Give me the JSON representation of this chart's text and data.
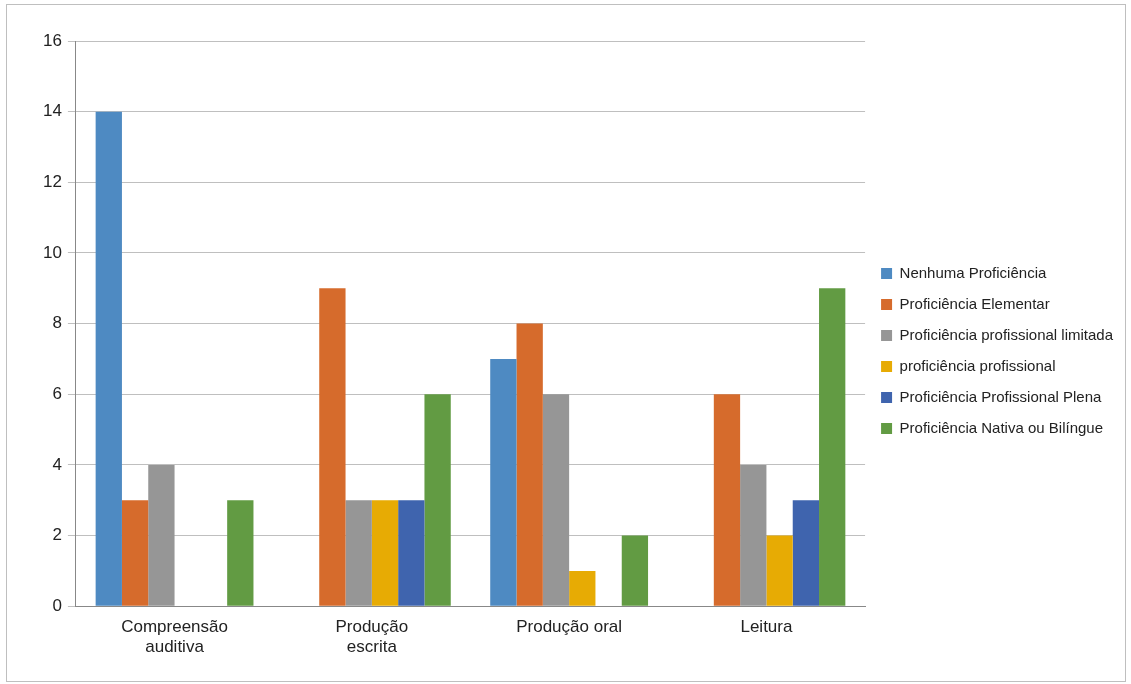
{
  "chart_data": {
    "type": "bar",
    "categories": [
      "Compreensão auditiva",
      "Produção escrita",
      "Produção oral",
      "Leitura"
    ],
    "series": [
      {
        "name": "Nenhuma Proficiência",
        "color": "#4e8ac2",
        "values": [
          14,
          0,
          7,
          0
        ]
      },
      {
        "name": "Proficiência Elementar",
        "color": "#d66b2c",
        "values": [
          3,
          9,
          8,
          6
        ]
      },
      {
        "name": "Proficiência profissional limitada",
        "color": "#969696",
        "values": [
          4,
          3,
          6,
          4
        ]
      },
      {
        "name": "proficiência profissional",
        "color": "#e7ab04",
        "values": [
          0,
          3,
          1,
          2
        ]
      },
      {
        "name": "Proficiência Profissional Plena",
        "color": "#3f64ae",
        "values": [
          0,
          3,
          0,
          3
        ]
      },
      {
        "name": "Proficiência Nativa ou Bilíngue",
        "color": "#629b43",
        "values": [
          3,
          6,
          2,
          9
        ]
      }
    ],
    "ylim": [
      0,
      16
    ],
    "yticks": [
      0,
      2,
      4,
      6,
      8,
      10,
      12,
      14,
      16
    ],
    "grid": "y",
    "legend": "right"
  }
}
